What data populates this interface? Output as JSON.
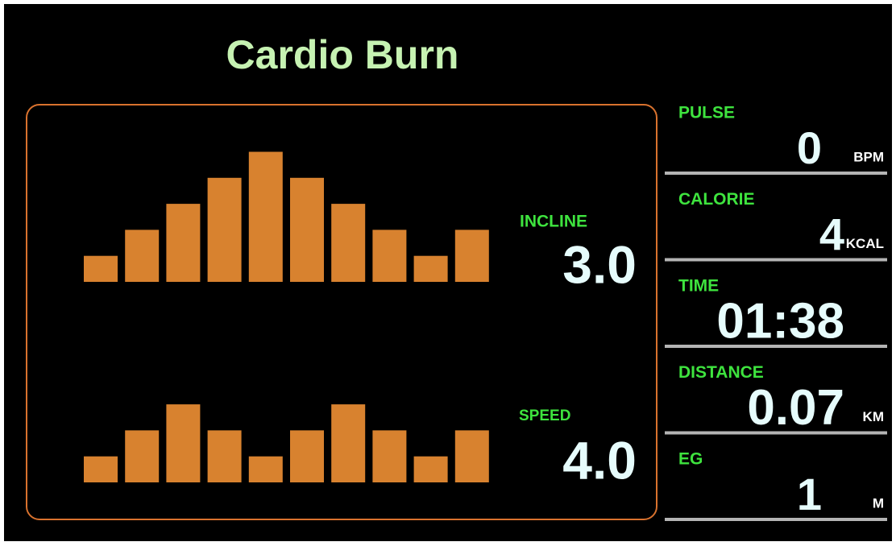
{
  "title": "Cardio Burn",
  "incline": {
    "label": "INCLINE",
    "value": "3.0",
    "profile": [
      1,
      2,
      3,
      4,
      5,
      4,
      3,
      2,
      1,
      2
    ]
  },
  "speed": {
    "label": "SPEED",
    "value": "4.0",
    "profile": [
      1,
      2,
      3,
      2,
      1,
      2,
      3,
      2,
      1,
      2
    ]
  },
  "stats": [
    {
      "label": "PULSE",
      "value": "0",
      "unit": "BPM"
    },
    {
      "label": "CALORIE",
      "value": "4",
      "unit": "KCAL"
    },
    {
      "label": "TIME",
      "value": "01:38"
    },
    {
      "label": "DISTANCE",
      "value": "0.07",
      "unit": "KM"
    },
    {
      "label": "EG",
      "value": "1",
      "unit": "M"
    }
  ]
}
